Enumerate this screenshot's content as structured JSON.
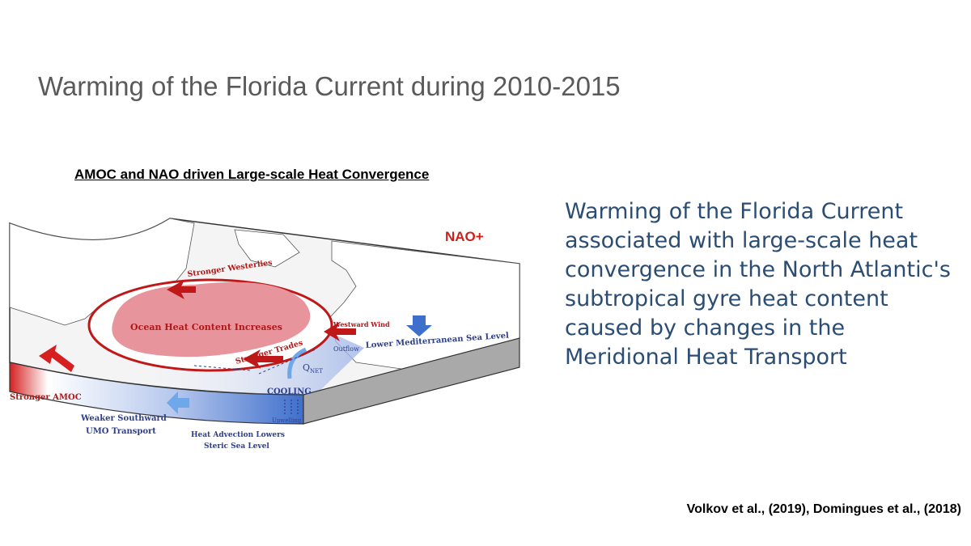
{
  "slide": {
    "title": "Warming of the Florida Current during 2010-2015",
    "body_lines": [
      "Warming of the Florida Current",
      "associated with large-scale heat",
      "convergence in the North Atlantic's",
      "subtropical gyre heat content",
      "caused by changes in the",
      "Meridional Heat Transport"
    ],
    "citation": "Volkov et al., (2019), Domingues et al., (2018)"
  },
  "diagram": {
    "title": "AMOC and NAO driven Large-scale Heat Convergence",
    "labels": {
      "nao": "NAO+",
      "stronger_westerlies": "Stronger Westerlies",
      "ocean_heat": "Ocean Heat Content Increases",
      "westward_wind": "Westward Wind",
      "outflow": "Outflow",
      "lower_med": "Lower Mediterranean Sea Level",
      "stronger_trades": "Stronger Trades",
      "q_net": "Q",
      "q_net_sub": "NET",
      "cooling": "COOLING",
      "upwelling": "Upwelling",
      "stronger_amoc": "Stronger AMOC",
      "weaker_southward_1": "Weaker Southward",
      "weaker_southward_2": "UMO Transport",
      "heat_advection_1": "Heat Advection Lowers",
      "heat_advection_2": "Steric Sea Level"
    },
    "colors": {
      "nao_red": "#d0201c",
      "gyre_red": "#c01818",
      "heat_pink": "#e8949c",
      "text_blue": "#2d3f8c",
      "slab_blue": "#3f6fcc",
      "slab_red": "#d62020",
      "land_fill": "#ffffff",
      "ocean_fill": "#f2f2f2",
      "slab_gray": "#a9a9a9",
      "text_dark_red": "#b01818"
    }
  }
}
